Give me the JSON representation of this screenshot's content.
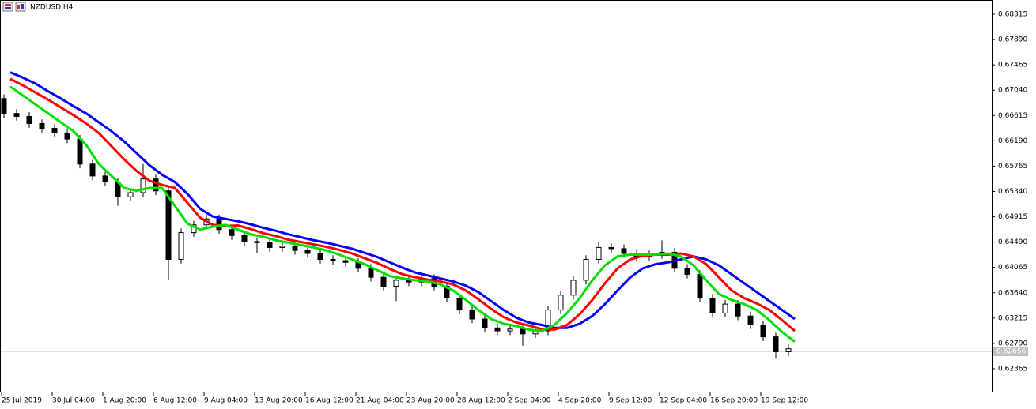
{
  "chart_data": {
    "type": "candlestick",
    "title": "NZDUSD,H4",
    "categories": [
      "25 Jul 2019",
      null,
      null,
      null,
      "30 Jul 04:00",
      null,
      null,
      null,
      "1 Aug 20:00",
      null,
      null,
      null,
      "6 Aug 12:00",
      null,
      null,
      null,
      "9 Aug 04:00",
      null,
      null,
      null,
      "13 Aug 20:00",
      null,
      null,
      null,
      "16 Aug 12:00",
      null,
      null,
      null,
      "21 Aug 04:00",
      null,
      null,
      null,
      "23 Aug 20:00",
      null,
      null,
      null,
      "28 Aug 12:00",
      null,
      null,
      null,
      "2 Sep 04:00",
      null,
      null,
      null,
      "4 Sep 20:00",
      null,
      null,
      null,
      "9 Sep 12:00",
      null,
      null,
      null,
      "12 Sep 04:00",
      null,
      null,
      null,
      "16 Sep 20:00",
      null,
      null,
      null,
      "19 Sep 12:00",
      null,
      null
    ],
    "open": [
      0.669,
      0.6665,
      0.666,
      0.6648,
      0.664,
      0.6632,
      0.6622,
      0.658,
      0.656,
      0.655,
      0.6525,
      0.6532,
      0.6555,
      0.6535,
      0.642,
      0.6465,
      0.6478,
      0.6488,
      0.647,
      0.646,
      0.645,
      0.6448,
      0.644,
      0.6442,
      0.6435,
      0.643,
      0.642,
      0.6418,
      0.6415,
      0.6405,
      0.639,
      0.6375,
      0.6385,
      0.6382,
      0.6388,
      0.6375,
      0.6355,
      0.6335,
      0.632,
      0.6305,
      0.63,
      0.6303,
      0.6295,
      0.63,
      0.6335,
      0.636,
      0.6385,
      0.642,
      0.644,
      0.6438,
      0.643,
      0.6425,
      0.6428,
      0.6432,
      0.6405,
      0.6395,
      0.6355,
      0.633,
      0.6345,
      0.6325,
      0.631,
      0.629,
      0.6265
    ],
    "high": [
      0.6697,
      0.6672,
      0.6667,
      0.6655,
      0.6647,
      0.6639,
      0.6629,
      0.6587,
      0.6567,
      0.6557,
      0.6539,
      0.658,
      0.6562,
      0.6542,
      0.6472,
      0.6485,
      0.6495,
      0.6495,
      0.6477,
      0.6467,
      0.6457,
      0.6455,
      0.6449,
      0.6449,
      0.6442,
      0.6437,
      0.6427,
      0.6425,
      0.6422,
      0.6412,
      0.6397,
      0.6392,
      0.6392,
      0.6395,
      0.6395,
      0.6382,
      0.6362,
      0.6342,
      0.6327,
      0.6312,
      0.631,
      0.631,
      0.6307,
      0.6342,
      0.6367,
      0.6392,
      0.6427,
      0.645,
      0.6447,
      0.6445,
      0.6437,
      0.6435,
      0.6452,
      0.6439,
      0.6412,
      0.6402,
      0.6362,
      0.6352,
      0.6352,
      0.6332,
      0.6317,
      0.6297,
      0.6277
    ],
    "low": [
      0.6658,
      0.6653,
      0.6641,
      0.6633,
      0.6625,
      0.6615,
      0.6573,
      0.6553,
      0.6543,
      0.651,
      0.6518,
      0.6525,
      0.6528,
      0.6385,
      0.6413,
      0.6458,
      0.6471,
      0.6463,
      0.6453,
      0.6443,
      0.643,
      0.6433,
      0.6433,
      0.6428,
      0.6423,
      0.6413,
      0.6411,
      0.6408,
      0.6398,
      0.6383,
      0.6368,
      0.635,
      0.6375,
      0.6375,
      0.6368,
      0.6348,
      0.6328,
      0.6313,
      0.6298,
      0.6293,
      0.6293,
      0.6275,
      0.6288,
      0.6293,
      0.6328,
      0.6353,
      0.6378,
      0.6413,
      0.6431,
      0.6423,
      0.6418,
      0.6418,
      0.6421,
      0.6398,
      0.6388,
      0.6348,
      0.6323,
      0.6323,
      0.6318,
      0.6303,
      0.6283,
      0.6255,
      0.6258
    ],
    "close": [
      0.6665,
      0.666,
      0.6648,
      0.664,
      0.6632,
      0.6622,
      0.658,
      0.656,
      0.655,
      0.6525,
      0.6532,
      0.6555,
      0.6535,
      0.642,
      0.6465,
      0.6478,
      0.6488,
      0.647,
      0.646,
      0.645,
      0.6448,
      0.644,
      0.6442,
      0.6435,
      0.643,
      0.642,
      0.6418,
      0.6415,
      0.6405,
      0.639,
      0.6375,
      0.6385,
      0.6382,
      0.6388,
      0.6375,
      0.6355,
      0.6335,
      0.632,
      0.6305,
      0.63,
      0.6303,
      0.6295,
      0.63,
      0.6335,
      0.636,
      0.6385,
      0.642,
      0.644,
      0.6438,
      0.643,
      0.6425,
      0.6428,
      0.6432,
      0.6405,
      0.6395,
      0.6355,
      0.633,
      0.6345,
      0.6325,
      0.631,
      0.629,
      0.6265,
      0.627
    ],
    "series": [
      {
        "color": "#0000ff",
        "values": [
          0.6734,
          0.6725,
          0.6715,
          0.6702,
          0.669,
          0.6677,
          0.6665,
          0.665,
          0.6635,
          0.6618,
          0.6598,
          0.6578,
          0.6562,
          0.655,
          0.653,
          0.6505,
          0.6492,
          0.6488,
          0.6484,
          0.6479,
          0.6473,
          0.6468,
          0.6462,
          0.6457,
          0.6452,
          0.6448,
          0.6443,
          0.6438,
          0.6431,
          0.6424,
          0.6415,
          0.6406,
          0.6398,
          0.6393,
          0.6388,
          0.6383,
          0.6376,
          0.6365,
          0.635,
          0.6335,
          0.6322,
          0.6314,
          0.631,
          0.6305,
          0.6305,
          0.6312,
          0.6325,
          0.6345,
          0.6368,
          0.639,
          0.6405,
          0.6412,
          0.6415,
          0.642,
          0.6425,
          0.642,
          0.641,
          0.6395,
          0.638,
          0.6365,
          0.635,
          0.6335,
          0.632
        ]
      },
      {
        "color": "#ff0000",
        "values": [
          0.6723,
          0.6712,
          0.67,
          0.6688,
          0.6675,
          0.6662,
          0.6648,
          0.6632,
          0.661,
          0.6588,
          0.6568,
          0.6552,
          0.6545,
          0.654,
          0.6515,
          0.649,
          0.6478,
          0.6476,
          0.6477,
          0.6471,
          0.6464,
          0.6459,
          0.6453,
          0.6449,
          0.6445,
          0.6441,
          0.6436,
          0.643,
          0.6422,
          0.6414,
          0.6404,
          0.6395,
          0.639,
          0.6386,
          0.6383,
          0.6378,
          0.6368,
          0.6353,
          0.6337,
          0.6323,
          0.6314,
          0.6309,
          0.6303,
          0.6302,
          0.631,
          0.6328,
          0.6352,
          0.638,
          0.6405,
          0.642,
          0.6426,
          0.6428,
          0.6428,
          0.643,
          0.6425,
          0.6412,
          0.639,
          0.6368,
          0.6355,
          0.6346,
          0.6335,
          0.6318,
          0.63
        ]
      },
      {
        "color": "#00e000",
        "values": [
          0.671,
          0.6695,
          0.668,
          0.6665,
          0.665,
          0.6635,
          0.6612,
          0.658,
          0.656,
          0.654,
          0.6535,
          0.654,
          0.654,
          0.651,
          0.648,
          0.647,
          0.6475,
          0.6478,
          0.647,
          0.6462,
          0.6458,
          0.6452,
          0.6448,
          0.6444,
          0.644,
          0.6435,
          0.6428,
          0.642,
          0.6412,
          0.6402,
          0.6392,
          0.6388,
          0.6385,
          0.6383,
          0.6378,
          0.6368,
          0.6352,
          0.6335,
          0.632,
          0.6312,
          0.6308,
          0.6302,
          0.63,
          0.631,
          0.633,
          0.6355,
          0.6385,
          0.641,
          0.6425,
          0.6428,
          0.6428,
          0.6428,
          0.643,
          0.6425,
          0.641,
          0.6385,
          0.6362,
          0.6352,
          0.6345,
          0.6335,
          0.6318,
          0.6298,
          0.6282
        ]
      }
    ],
    "bid": 0.62656,
    "ylim": [
      0.61967,
      0.68554
    ],
    "yticks": [
      0.68315,
      {
        "value": 0.6789,
        "label": "0.67890"
      },
      0.67465,
      {
        "value": 0.6704,
        "label": "0.67040"
      },
      0.66615,
      {
        "value": 0.6619,
        "label": "0.66190"
      },
      0.65765,
      {
        "value": 0.6534,
        "label": "0.65340"
      },
      0.64915,
      {
        "value": 0.6449,
        "label": "0.64490"
      },
      0.64065,
      {
        "value": 0.6364,
        "label": "0.63640"
      },
      0.63215,
      {
        "value": 0.6279,
        "label": "0.62790"
      },
      0.62365
    ],
    "grid": false
  }
}
